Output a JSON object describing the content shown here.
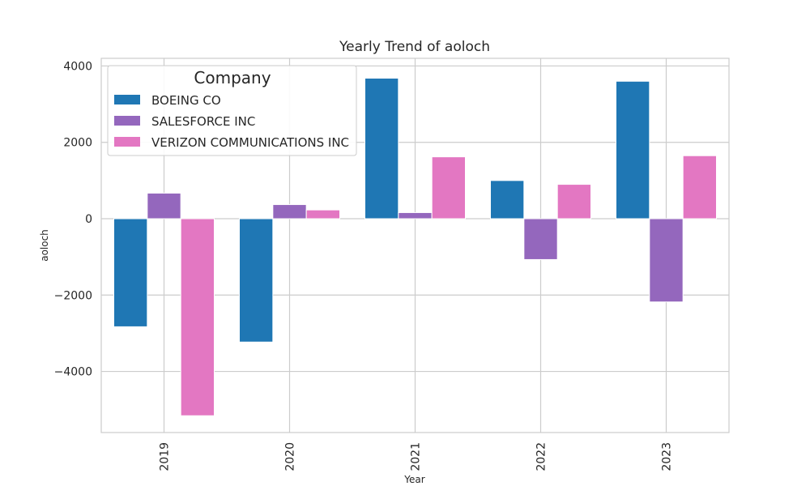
{
  "chart_data": {
    "type": "bar",
    "title": "Yearly Trend of aoloch",
    "xlabel": "Year",
    "ylabel": "aoloch",
    "categories": [
      "2019",
      "2020",
      "2021",
      "2022",
      "2023"
    ],
    "series": [
      {
        "name": "BOEING CO",
        "color": "#1f77b4",
        "values": [
          -2830,
          -3230,
          3680,
          1000,
          3600
        ]
      },
      {
        "name": "SALESFORCE INC",
        "color": "#9467bd",
        "values": [
          670,
          370,
          160,
          -1070,
          -2180
        ]
      },
      {
        "name": "VERIZON COMMUNICATIONS INC",
        "color": "#e377c2",
        "values": [
          -5160,
          230,
          1620,
          900,
          1650
        ]
      }
    ],
    "ylim": [
      -5600,
      4200
    ],
    "yticks": [
      4000,
      2000,
      0,
      -2000,
      -4000
    ],
    "ytick_labels": [
      "4000",
      "2000",
      "0",
      "−2000",
      "−4000"
    ],
    "grid": true,
    "legend": {
      "title": "Company",
      "placement": "top-left"
    }
  }
}
